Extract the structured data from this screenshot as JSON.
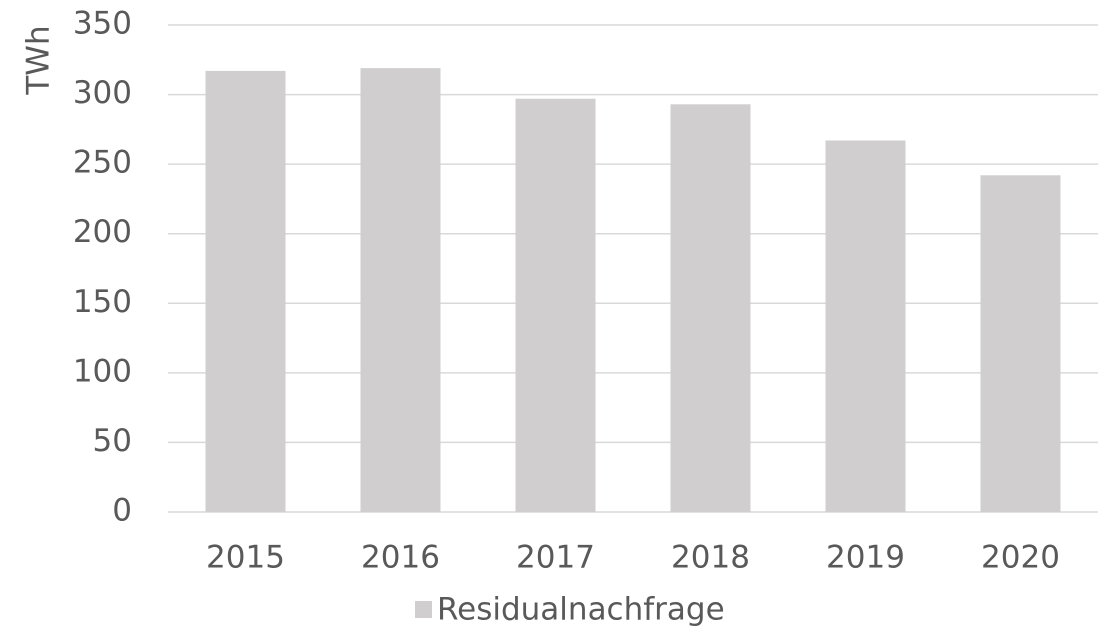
{
  "chart_data": {
    "type": "bar",
    "y_label": "TWh",
    "categories": [
      "2015",
      "2016",
      "2017",
      "2018",
      "2019",
      "2020"
    ],
    "series": [
      {
        "name": "Residualnachfrage",
        "color": "#d0cece",
        "values": [
          317,
          319,
          297,
          293,
          267,
          242
        ]
      }
    ],
    "ylim": [
      0,
      350
    ],
    "yticks": [
      0,
      50,
      100,
      150,
      200,
      250,
      300,
      350
    ],
    "grid": true,
    "legend": "bottom"
  }
}
